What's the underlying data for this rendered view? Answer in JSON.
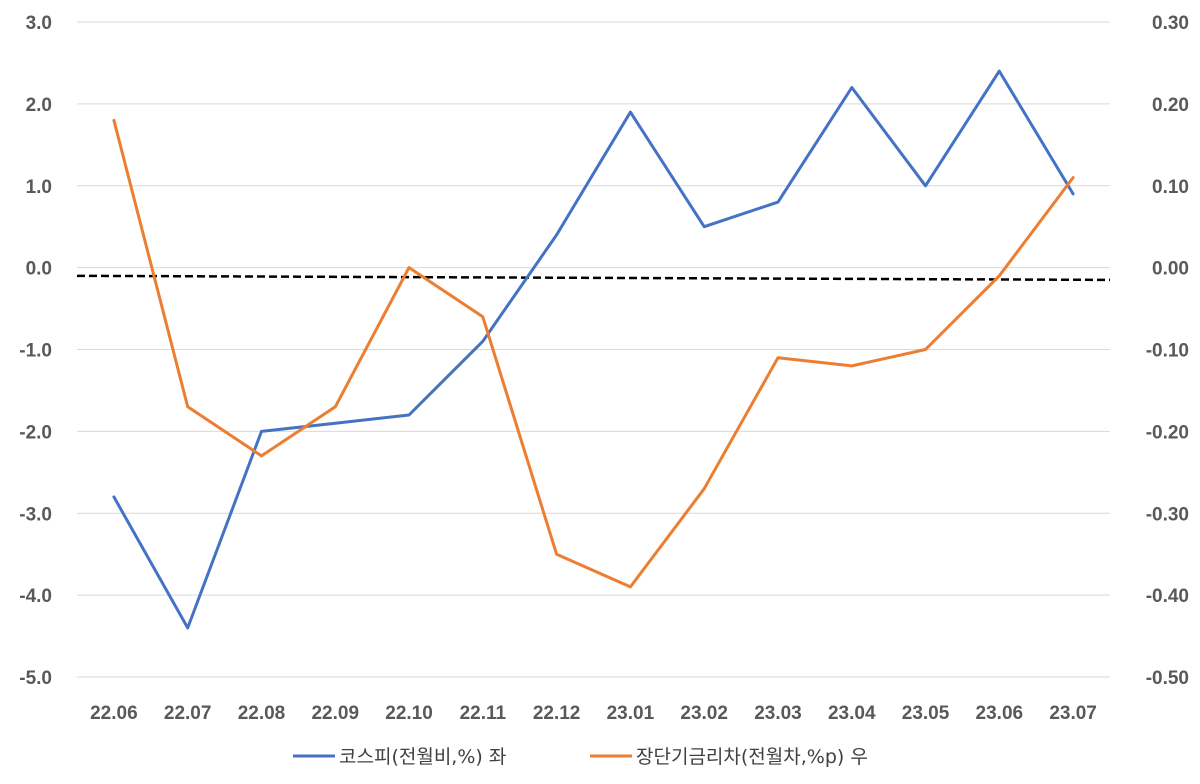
{
  "chart_data": {
    "type": "line",
    "categories": [
      "22.06",
      "22.07",
      "22.08",
      "22.09",
      "22.10",
      "22.11",
      "22.12",
      "23.01",
      "23.02",
      "23.03",
      "23.04",
      "23.05",
      "23.06",
      "23.07"
    ],
    "series": [
      {
        "name": "코스피(전월비,%) 좌",
        "axis": "left",
        "color": "#4472C4",
        "values": [
          -2.8,
          -4.4,
          -2.0,
          -1.9,
          -1.8,
          -0.9,
          0.4,
          1.9,
          0.5,
          0.8,
          2.2,
          1.0,
          2.4,
          0.9
        ]
      },
      {
        "name": "장단기금리차(전월차,%p) 우",
        "axis": "right",
        "color": "#ED7D31",
        "values": [
          0.18,
          -0.17,
          -0.23,
          -0.17,
          0.0,
          -0.06,
          -0.35,
          -0.39,
          -0.27,
          -0.11,
          -0.12,
          -0.1,
          -0.01,
          0.11
        ]
      }
    ],
    "reference_line": {
      "style": "dashed",
      "color": "#000000",
      "y_right": [
        -0.01,
        -0.015
      ]
    },
    "left_axis": {
      "ylim": [
        -5.0,
        3.0
      ],
      "ticks": [
        "3.0",
        "2.0",
        "1.0",
        "0.0",
        "-1.0",
        "-2.0",
        "-3.0",
        "-4.0",
        "-5.0"
      ]
    },
    "right_axis": {
      "ylim": [
        -0.5,
        0.3
      ],
      "ticks": [
        "0.30",
        "0.20",
        "0.10",
        "0.00",
        "-0.10",
        "-0.20",
        "-0.30",
        "-0.40",
        "-0.50"
      ]
    },
    "grid": true,
    "legend_position": "bottom",
    "title": "",
    "xlabel": "",
    "ylabel": ""
  }
}
